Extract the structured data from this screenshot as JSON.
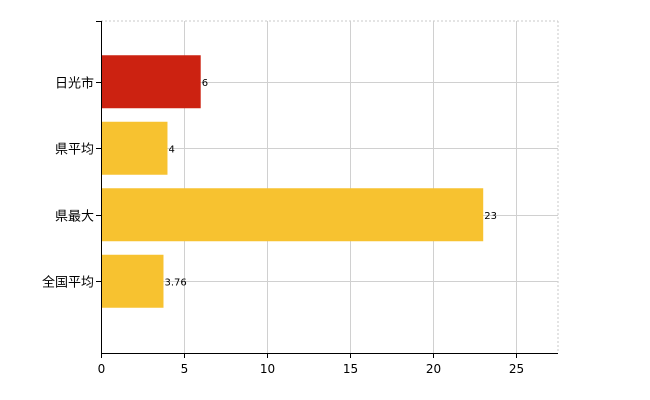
{
  "chart_data": {
    "type": "bar",
    "orientation": "horizontal",
    "categories": [
      "日光市",
      "県平均",
      "県最大",
      "全国平均"
    ],
    "values": [
      6,
      4,
      23,
      3.76
    ],
    "data_labels": [
      "6",
      "4",
      "23",
      "3.76"
    ],
    "bar_colors": [
      "#cc2211",
      "#f7c230",
      "#f7c230",
      "#f7c230"
    ],
    "xlim": [
      0,
      27.5
    ],
    "x_ticks": [
      0,
      5,
      10,
      15,
      20,
      25
    ],
    "x_tick_labels": [
      "0",
      "5",
      "10",
      "15",
      "20",
      "25"
    ],
    "grid": true,
    "title": "",
    "xlabel": "",
    "ylabel": ""
  }
}
